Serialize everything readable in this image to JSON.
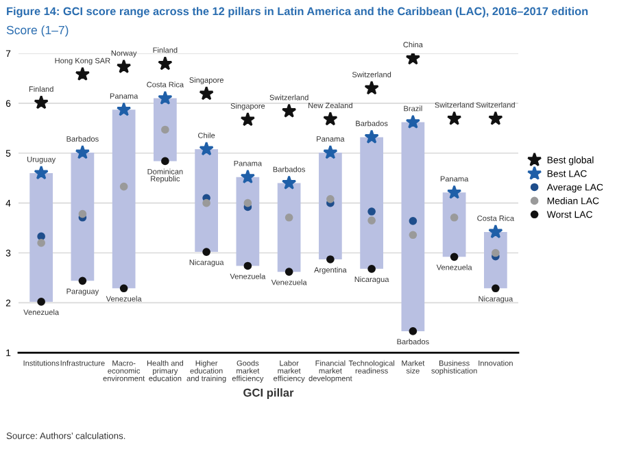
{
  "chart_data": {
    "type": "bar",
    "title": "Figure 14: GCI score range across the 12 pillars in Latin America and the Caribbean (LAC), 2016–2017 edition",
    "subtitle": "Score (1–7)",
    "xlabel": "GCI pillar",
    "categories": [
      "Institutions",
      "Infrastructure",
      "Macro-\neconomic\nenvironment",
      "Health and\nprimary\neducation",
      "Higher\neducation\nand training",
      "Goods\nmarket\nefficiency",
      "Labor\nmarket\nefficiency",
      "Financial\nmarket\ndevelopment",
      "Technological\nreadiness",
      "Market\nsize",
      "Business\nsophistication",
      "Innovation"
    ],
    "series": [
      {
        "color": "#b9c0e2",
        "base": [
          2.02,
          2.44,
          2.29,
          4.84,
          3.02,
          2.74,
          2.62,
          2.87,
          2.68,
          1.43,
          2.92,
          2.29
        ],
        "values": [
          2.58,
          2.57,
          3.58,
          1.26,
          2.06,
          1.78,
          1.78,
          2.14,
          2.64,
          4.19,
          1.29,
          1.13
        ]
      },
      {
        "type": "scatter",
        "name": "Best global",
        "color": "#111111",
        "marker": "star",
        "values": [
          6.01,
          6.58,
          6.73,
          6.79,
          6.19,
          5.67,
          5.84,
          5.68,
          6.3,
          6.9,
          5.69,
          5.69
        ],
        "value_labels": [
          "Finland",
          "Hong Kong SAR",
          "Norway",
          "Finland",
          "Singapore",
          "Singapore",
          "Switzerland",
          "New Zealand",
          "Switzerland",
          "China",
          "Switzerland",
          "Switzerland"
        ]
      },
      {
        "type": "scatter",
        "name": "Best LAC",
        "color": "#1f5fa8",
        "marker": "star",
        "values": [
          4.6,
          5.01,
          5.87,
          6.1,
          5.08,
          4.52,
          4.4,
          5.01,
          5.32,
          5.62,
          4.21,
          3.42
        ],
        "value_labels": [
          "Uruguay",
          "Barbados",
          "Panama",
          "Costa Rica",
          "Chile",
          "Panama",
          "Barbados",
          "Panama",
          "Barbados",
          "Brazil",
          "Panama",
          "Costa Rica"
        ]
      },
      {
        "type": "scatter",
        "name": "Average LAC",
        "color": "#1f4e8c",
        "marker": "circle",
        "values": [
          3.33,
          3.71,
          null,
          null,
          4.1,
          3.92,
          null,
          4.0,
          3.83,
          3.64,
          null,
          2.93
        ]
      },
      {
        "type": "scatter",
        "name": "Median LAC",
        "color": "#9a9a9a",
        "marker": "circle",
        "values": [
          3.2,
          3.78,
          4.33,
          5.47,
          4.0,
          4.0,
          3.71,
          4.08,
          3.65,
          3.36,
          3.71,
          3.0
        ]
      },
      {
        "type": "scatter",
        "name": "Worst LAC",
        "color": "#111111",
        "marker": "circle",
        "values": [
          2.02,
          2.44,
          2.29,
          4.84,
          3.02,
          2.74,
          2.62,
          2.87,
          2.68,
          1.43,
          2.92,
          2.29
        ],
        "value_labels": [
          "Venezuela",
          "Paraguay",
          "Venezuela",
          "Dominican\nRepublic",
          "Nicaragua",
          "Venezuela",
          "Venezuela",
          "Argentina",
          "Nicaragua",
          "Barbados",
          "Venezuela",
          "Nicaragua"
        ]
      }
    ],
    "ylim": [
      1,
      7
    ],
    "yticks": [
      1,
      2,
      3,
      4,
      5,
      6,
      7
    ],
    "grid": "y",
    "legend": "right",
    "annotations": [
      "Source: Authors’ calculations."
    ]
  }
}
